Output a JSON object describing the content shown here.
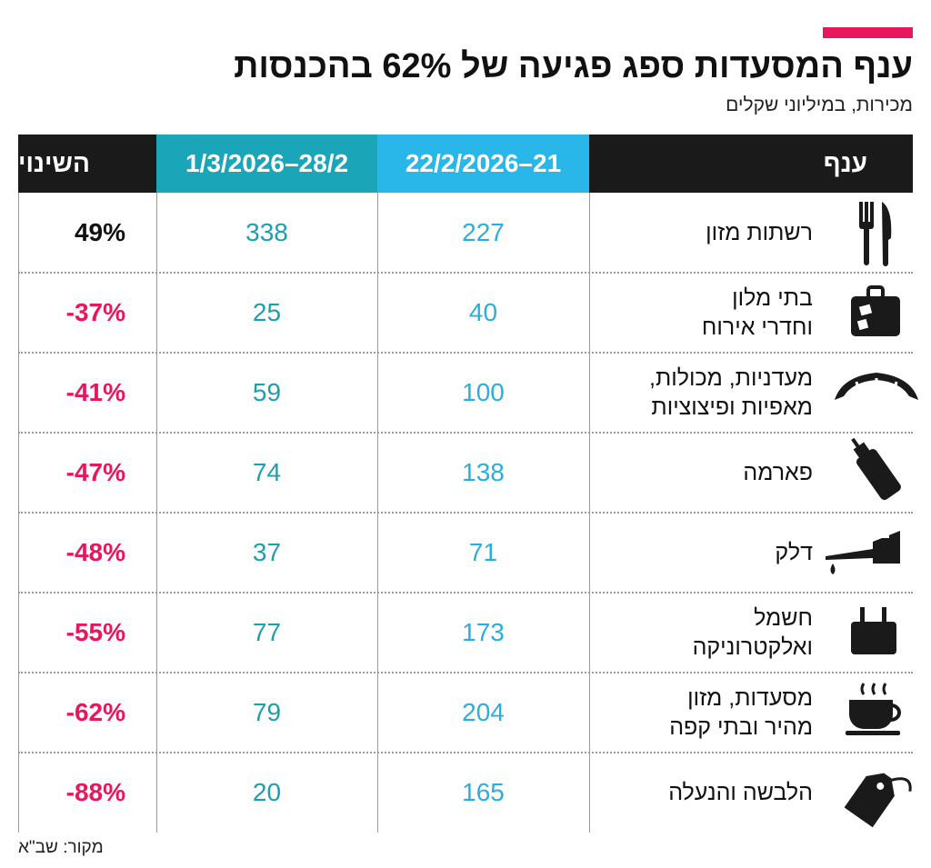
{
  "header": {
    "title": "ענף המסעדות ספג פגיעה של 62% בהכנסות",
    "subtitle": "מכירות, במיליוני שקלים"
  },
  "table": {
    "columns": [
      "ענף",
      "21–22/2/2026",
      "28/2–1/3/2026",
      "השינוי"
    ],
    "rows": [
      [
        "רשתות מזון",
        227,
        338,
        "49%"
      ],
      [
        "בתי מלון\nוחדרי אירוח",
        40,
        25,
        "-37%"
      ],
      [
        "מעדניות, מכולות,\nמאפיות ופיצוציות",
        100,
        59,
        "-41%"
      ],
      [
        "פארמה",
        138,
        74,
        "-47%"
      ],
      [
        "דלק",
        71,
        37,
        "-48%"
      ],
      [
        "חשמל\nואלקטרוניקה",
        173,
        77,
        "-55%"
      ],
      [
        "מסעדות, מזון\nמהיר ובתי קפה",
        204,
        79,
        "-62%"
      ],
      [
        "הלבשה והנעלה",
        165,
        20,
        "-88%"
      ]
    ]
  },
  "source": "מקור: שב\"א"
}
